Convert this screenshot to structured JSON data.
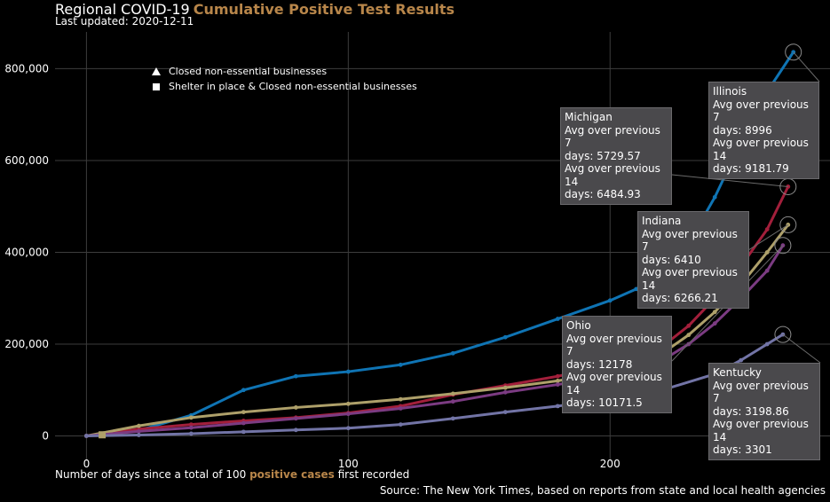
{
  "header": {
    "title": "Regional COVID-19",
    "subtitle": "Cumulative Positive Test Results",
    "updated": "Last updated: 2020-12-11"
  },
  "xlabel": {
    "pre": "Number of days since a total of 100",
    "highlight": "positive cases",
    "post": "first recorded"
  },
  "source": "Source: The New York Times, based on reports from state and local health agencies",
  "legend": [
    {
      "symbol": "triangle",
      "label": "Closed non-essential businesses"
    },
    {
      "symbol": "square",
      "label": "Shelter in place & Closed non-essential businesses"
    }
  ],
  "tooltips": [
    {
      "state": "Illinois",
      "l1": "Avg over previous 7",
      "l2": "days: 8996",
      "l3": "Avg over previous 14",
      "l4": "days: 9181.79"
    },
    {
      "state": "Michigan",
      "l1": "Avg over previous 7",
      "l2": "days: 5729.57",
      "l3": "Avg over previous 14",
      "l4": "days: 6484.93"
    },
    {
      "state": "Indiana",
      "l1": "Avg over previous 7",
      "l2": "days: 6410",
      "l3": "Avg over previous 14",
      "l4": "days: 6266.21"
    },
    {
      "state": "Ohio",
      "l1": "Avg over previous 7",
      "l2": "days: 12178",
      "l3": "Avg over previous 14",
      "l4": "days: 10171.5"
    },
    {
      "state": "Kentucky",
      "l1": "Avg over previous 7",
      "l2": "days: 3198.86",
      "l3": "Avg over previous 14",
      "l4": "days: 3301"
    }
  ],
  "colors": {
    "Illinois": "#0f74b4",
    "Michigan": "#a21f3b",
    "Indiana": "#aea06a",
    "Ohio": "#7b3b82",
    "Kentucky": "#7274a6",
    "accent": "#b8864a"
  },
  "chart_data": {
    "type": "line",
    "title": "Cumulative Positive Test Results",
    "xlabel": "Number of days since a total of 100 positive cases first recorded",
    "ylabel": "",
    "xlim": [
      -12,
      284
    ],
    "ylim": [
      -55000,
      880000
    ],
    "xticks": [
      0,
      100,
      200
    ],
    "yticks": [
      0,
      200000,
      400000,
      600000,
      800000
    ],
    "ytick_labels": [
      "0",
      "200,000",
      "400,000",
      "600,000",
      "800,000"
    ],
    "grid": true,
    "legend_position": "top-left",
    "series": [
      {
        "name": "Illinois",
        "x": [
          0,
          20,
          40,
          60,
          80,
          100,
          120,
          140,
          160,
          180,
          200,
          210,
          220,
          230,
          240,
          250,
          260,
          270
        ],
        "values": [
          100,
          12000,
          45000,
          100000,
          130000,
          140000,
          155000,
          180000,
          215000,
          255000,
          295000,
          320000,
          350000,
          420000,
          520000,
          640000,
          750000,
          836000
        ]
      },
      {
        "name": "Michigan",
        "x": [
          0,
          20,
          40,
          60,
          80,
          100,
          120,
          140,
          160,
          180,
          200,
          220,
          230,
          240,
          250,
          260,
          268
        ],
        "values": [
          100,
          15000,
          25000,
          33000,
          40000,
          50000,
          65000,
          90000,
          110000,
          130000,
          155000,
          195000,
          240000,
          300000,
          370000,
          450000,
          543000
        ]
      },
      {
        "name": "Indiana",
        "x": [
          0,
          20,
          40,
          60,
          80,
          100,
          120,
          140,
          160,
          180,
          200,
          220,
          230,
          240,
          250,
          260,
          268
        ],
        "values": [
          100,
          22000,
          40000,
          52000,
          62000,
          70000,
          80000,
          92000,
          105000,
          120000,
          140000,
          180000,
          220000,
          270000,
          330000,
          400000,
          460000
        ]
      },
      {
        "name": "Ohio",
        "x": [
          0,
          20,
          40,
          60,
          80,
          100,
          120,
          140,
          160,
          180,
          200,
          220,
          230,
          240,
          250,
          260,
          266
        ],
        "values": [
          100,
          10000,
          18000,
          28000,
          38000,
          48000,
          60000,
          75000,
          95000,
          112000,
          130000,
          165000,
          200000,
          245000,
          300000,
          360000,
          415000
        ]
      },
      {
        "name": "Kentucky",
        "x": [
          0,
          20,
          40,
          60,
          80,
          100,
          120,
          140,
          160,
          180,
          200,
          220,
          240,
          250,
          260,
          266
        ],
        "values": [
          100,
          2000,
          5000,
          9000,
          13000,
          17000,
          25000,
          38000,
          52000,
          65000,
          80000,
          100000,
          135000,
          165000,
          200000,
          221000
        ]
      }
    ]
  }
}
